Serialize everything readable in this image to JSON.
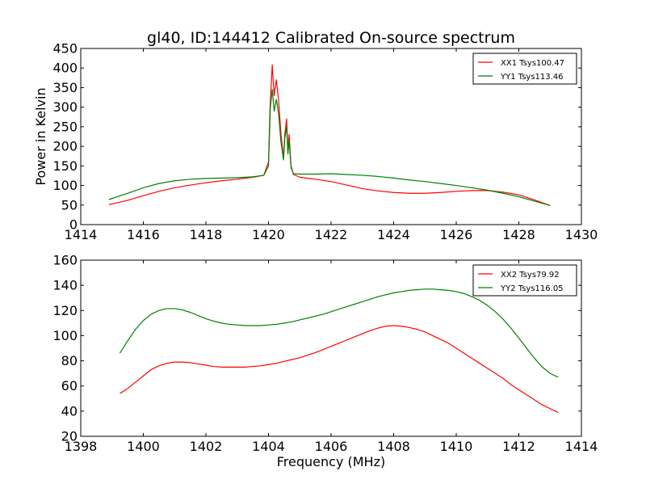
{
  "figure": {
    "title": "gl40, ID:144412 Calibrated On-source spectrum"
  },
  "chart_data": [
    {
      "type": "line",
      "title": "gl40, ID:144412 Calibrated On-source spectrum",
      "xlabel": "",
      "ylabel": "Power in Kelvin",
      "xlim": [
        1414,
        1430
      ],
      "ylim": [
        0,
        450
      ],
      "xticks": [
        1414,
        1416,
        1418,
        1420,
        1422,
        1424,
        1426,
        1428,
        1430
      ],
      "yticks": [
        0,
        50,
        100,
        150,
        200,
        250,
        300,
        350,
        400,
        450
      ],
      "grid": false,
      "legend_position": "top-right",
      "series": [
        {
          "name": "XX1 Tsys100.47",
          "color": "#ff0000",
          "x": [
            1414.9,
            1415.5,
            1416.0,
            1416.5,
            1417.0,
            1417.5,
            1418.0,
            1418.5,
            1419.0,
            1419.5,
            1419.85,
            1420.0,
            1420.05,
            1420.12,
            1420.18,
            1420.25,
            1420.32,
            1420.4,
            1420.48,
            1420.52,
            1420.58,
            1420.62,
            1420.66,
            1420.72,
            1420.8,
            1421.0,
            1421.5,
            1422.0,
            1422.5,
            1423.0,
            1423.5,
            1424.0,
            1424.5,
            1425.0,
            1425.5,
            1426.0,
            1426.5,
            1427.0,
            1427.5,
            1428.0,
            1428.5,
            1429.0
          ],
          "values": [
            51,
            62,
            74,
            85,
            94,
            101,
            107,
            112,
            116,
            121,
            126,
            160,
            300,
            408,
            330,
            370,
            320,
            230,
            170,
            230,
            270,
            190,
            230,
            150,
            128,
            121,
            116,
            110,
            101,
            92,
            86,
            82,
            80,
            80,
            82,
            85,
            87,
            87,
            83,
            76,
            63,
            49
          ]
        },
        {
          "name": "YY1 Tsys113.46",
          "color": "#008000",
          "x": [
            1414.9,
            1415.5,
            1416.0,
            1416.5,
            1417.0,
            1417.5,
            1418.0,
            1418.5,
            1419.0,
            1419.5,
            1419.85,
            1420.0,
            1420.06,
            1420.12,
            1420.18,
            1420.25,
            1420.32,
            1420.4,
            1420.48,
            1420.52,
            1420.58,
            1420.62,
            1420.66,
            1420.72,
            1420.8,
            1421.0,
            1421.5,
            1422.0,
            1422.5,
            1423.0,
            1423.5,
            1424.0,
            1424.5,
            1425.0,
            1425.5,
            1426.0,
            1426.5,
            1427.0,
            1427.5,
            1428.0,
            1428.5,
            1429.0
          ],
          "values": [
            64,
            80,
            94,
            105,
            112,
            116,
            118,
            119,
            120,
            122,
            126,
            150,
            300,
            345,
            290,
            320,
            285,
            210,
            165,
            220,
            250,
            180,
            215,
            145,
            130,
            129,
            129,
            130,
            128,
            126,
            123,
            119,
            114,
            110,
            105,
            100,
            94,
            88,
            80,
            71,
            60,
            49
          ]
        }
      ]
    },
    {
      "type": "line",
      "title": "",
      "xlabel": "Frequency (MHz)",
      "ylabel": "",
      "xlim": [
        1398,
        1414
      ],
      "ylim": [
        20,
        160
      ],
      "xticks": [
        1398,
        1400,
        1402,
        1404,
        1406,
        1408,
        1410,
        1412,
        1414
      ],
      "yticks": [
        20,
        40,
        60,
        80,
        100,
        120,
        140,
        160
      ],
      "grid": false,
      "legend_position": "top-right",
      "series": [
        {
          "name": "XX2 Tsys79.92",
          "color": "#ff0000",
          "x": [
            1399.25,
            1399.5,
            1399.75,
            1400.0,
            1400.25,
            1400.5,
            1400.75,
            1401.0,
            1401.25,
            1401.5,
            1401.75,
            1402.0,
            1402.25,
            1402.5,
            1402.75,
            1403.0,
            1403.25,
            1403.5,
            1403.75,
            1404.0,
            1404.25,
            1404.5,
            1404.75,
            1405.0,
            1405.25,
            1405.5,
            1405.75,
            1406.0,
            1406.25,
            1406.5,
            1406.75,
            1407.0,
            1407.25,
            1407.5,
            1407.75,
            1408.0,
            1408.25,
            1408.5,
            1408.75,
            1409.0,
            1409.25,
            1409.5,
            1409.75,
            1410.0,
            1410.25,
            1410.5,
            1410.75,
            1411.0,
            1411.25,
            1411.5,
            1411.75,
            1412.0,
            1412.25,
            1412.5,
            1412.75,
            1413.0,
            1413.25
          ],
          "values": [
            54,
            58,
            63,
            68,
            73,
            76,
            78,
            79,
            79,
            78.5,
            77.5,
            76.5,
            75.5,
            75,
            75,
            75,
            75,
            75.5,
            76,
            77,
            78,
            79.5,
            81,
            82.5,
            84.5,
            86.5,
            89,
            91.5,
            94,
            96.5,
            99,
            101.5,
            104,
            106,
            107.5,
            108,
            107.5,
            106.5,
            105,
            103,
            100,
            97,
            94,
            90,
            86,
            82,
            78,
            74,
            70,
            66,
            61,
            57,
            53,
            49,
            45,
            42,
            39
          ]
        },
        {
          "name": "YY2 Tsys116.05",
          "color": "#008000",
          "x": [
            1399.25,
            1399.5,
            1399.75,
            1400.0,
            1400.25,
            1400.5,
            1400.75,
            1401.0,
            1401.25,
            1401.5,
            1401.75,
            1402.0,
            1402.25,
            1402.5,
            1402.75,
            1403.0,
            1403.25,
            1403.5,
            1403.75,
            1404.0,
            1404.25,
            1404.5,
            1404.75,
            1405.0,
            1405.25,
            1405.5,
            1405.75,
            1406.0,
            1406.25,
            1406.5,
            1406.75,
            1407.0,
            1407.25,
            1407.5,
            1407.75,
            1408.0,
            1408.25,
            1408.5,
            1408.75,
            1409.0,
            1409.25,
            1409.5,
            1409.75,
            1410.0,
            1410.25,
            1410.5,
            1410.75,
            1411.0,
            1411.25,
            1411.5,
            1411.75,
            1412.0,
            1412.25,
            1412.5,
            1412.75,
            1413.0,
            1413.25
          ],
          "values": [
            86,
            96,
            105,
            112,
            117,
            120,
            121.5,
            121.5,
            120.5,
            118.5,
            116,
            113.5,
            111.5,
            110,
            109,
            108.5,
            108,
            108,
            108,
            108.5,
            109,
            110,
            111,
            112.5,
            114,
            115.5,
            117,
            119,
            121,
            123,
            125,
            127,
            129,
            131,
            132.5,
            134,
            135,
            136,
            136.5,
            137,
            137,
            136.5,
            136,
            135,
            133.5,
            131,
            128,
            124,
            119,
            113,
            106,
            98,
            90,
            82,
            75,
            70,
            67
          ]
        }
      ]
    }
  ]
}
